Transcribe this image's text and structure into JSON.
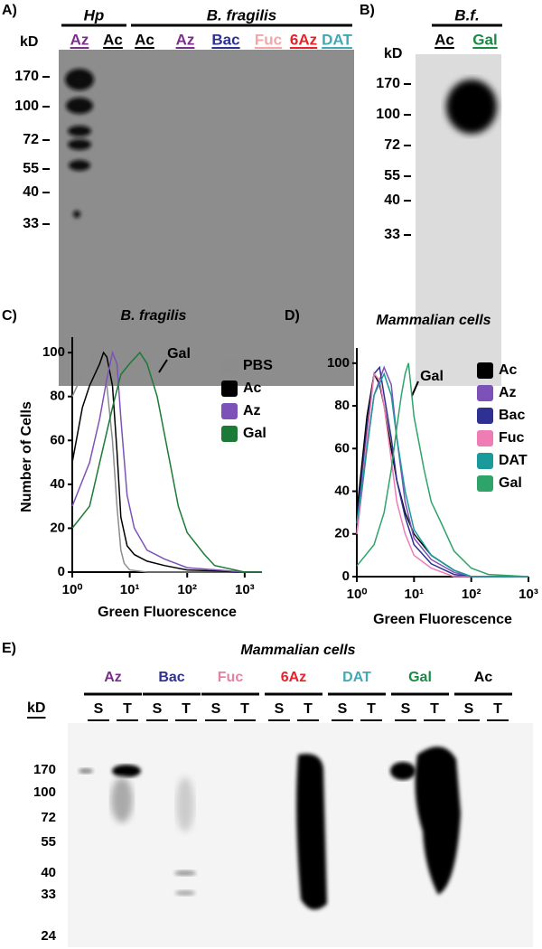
{
  "panels": {
    "a": {
      "label": "A)",
      "unit": "kD",
      "groups": [
        {
          "name": "Hp",
          "lanes": [
            {
              "name": "Az",
              "color": "#7b2d8e"
            },
            {
              "name": "Ac",
              "color": "#000000"
            }
          ]
        },
        {
          "name": "B. fragilis",
          "lanes": [
            {
              "name": "Ac",
              "color": "#000000"
            },
            {
              "name": "Az",
              "color": "#7b2d8e"
            },
            {
              "name": "Bac",
              "color": "#2e3192"
            },
            {
              "name": "Fuc",
              "color": "#f4a6a6"
            },
            {
              "name": "6Az",
              "color": "#e8212a"
            },
            {
              "name": "DAT",
              "color": "#3fa9b5"
            }
          ]
        }
      ],
      "markers": [
        170,
        100,
        72,
        55,
        40,
        33
      ]
    },
    "b": {
      "label": "B)",
      "unit": "kD",
      "groups": [
        {
          "name": "B.f.",
          "lanes": [
            {
              "name": "Ac",
              "color": "#000000"
            },
            {
              "name": "Gal",
              "color": "#1b8a45"
            }
          ]
        }
      ],
      "markers": [
        170,
        100,
        72,
        55,
        40,
        33
      ]
    },
    "e": {
      "label": "E)",
      "title": "Mammalian cells",
      "unit": "kD",
      "groups": [
        {
          "name": "Az",
          "color": "#7b2d8e",
          "lanes": [
            "S",
            "T"
          ]
        },
        {
          "name": "Bac",
          "color": "#2e3192",
          "lanes": [
            "S",
            "T"
          ]
        },
        {
          "name": "Fuc",
          "color": "#e87fa6",
          "lanes": [
            "S",
            "T"
          ]
        },
        {
          "name": "6Az",
          "color": "#e8212a",
          "lanes": [
            "S",
            "T"
          ]
        },
        {
          "name": "DAT",
          "color": "#3fa9b5",
          "lanes": [
            "S",
            "T"
          ]
        },
        {
          "name": "Gal",
          "color": "#1b8a45",
          "lanes": [
            "S",
            "T"
          ]
        },
        {
          "name": "Ac",
          "color": "#000000",
          "lanes": [
            "S",
            "T"
          ]
        }
      ],
      "markers": [
        170,
        100,
        72,
        55,
        40,
        33,
        24
      ]
    }
  },
  "chart_data": [
    {
      "type": "line",
      "label": "C)",
      "title": "B. fragilis",
      "xlabel": "Green Fluorescence",
      "ylabel": "Number of Cells",
      "log_x": true,
      "xlim": [
        1,
        2000
      ],
      "xticks": [
        {
          "value": 1,
          "label": "10⁰"
        },
        {
          "value": 10,
          "label": "10¹"
        },
        {
          "value": 100,
          "label": "10²"
        },
        {
          "value": 1000,
          "label": "10³"
        }
      ],
      "ylim": [
        0,
        105
      ],
      "yticks": [
        0,
        20,
        40,
        60,
        80,
        100
      ],
      "annotation": "Gal",
      "series": [
        {
          "name": "PBS",
          "color": "#8c8c8c",
          "x": [
            1,
            1.5,
            2,
            2.5,
            3,
            4,
            5,
            6,
            7,
            8,
            10,
            20,
            2000
          ],
          "values": [
            80,
            90,
            95,
            100,
            95,
            85,
            60,
            30,
            10,
            4,
            1,
            0,
            0
          ]
        },
        {
          "name": "Ac",
          "color": "#000000",
          "x": [
            1,
            1.5,
            2,
            3,
            3.5,
            4,
            5,
            6,
            7,
            9,
            12,
            20,
            40,
            100,
            1000,
            2000
          ],
          "values": [
            50,
            75,
            85,
            95,
            100,
            98,
            85,
            55,
            25,
            12,
            8,
            5,
            3,
            1,
            0,
            0
          ]
        },
        {
          "name": "Az",
          "color": "#7d52b8",
          "x": [
            1,
            2,
            3,
            4,
            5,
            6,
            7,
            9,
            12,
            20,
            40,
            100,
            1000,
            2000
          ],
          "values": [
            30,
            50,
            70,
            88,
            100,
            95,
            70,
            35,
            20,
            10,
            6,
            2,
            0,
            0
          ]
        },
        {
          "name": "Gal",
          "color": "#1b7a35",
          "x": [
            1,
            2,
            3,
            5,
            7,
            10,
            15,
            20,
            30,
            50,
            70,
            100,
            200,
            300,
            1000,
            2000
          ],
          "values": [
            20,
            30,
            50,
            75,
            90,
            95,
            100,
            95,
            80,
            50,
            30,
            18,
            8,
            3,
            0,
            0
          ]
        }
      ]
    },
    {
      "type": "line",
      "label": "D)",
      "title": "Mammalian cells",
      "xlabel": "Green Fluorescence",
      "log_x": true,
      "xlim": [
        1,
        1000
      ],
      "xticks": [
        {
          "value": 1,
          "label": "10⁰"
        },
        {
          "value": 10,
          "label": "10¹"
        },
        {
          "value": 100,
          "label": "10²"
        },
        {
          "value": 1000,
          "label": "10³"
        }
      ],
      "ylim": [
        0,
        105
      ],
      "yticks": [
        0,
        20,
        40,
        60,
        80,
        100
      ],
      "annotation": "Gal",
      "series": [
        {
          "name": "Ac",
          "color": "#000000",
          "x": [
            1,
            1.5,
            2,
            2.5,
            3,
            4,
            5,
            7,
            10,
            20,
            50,
            100,
            1000
          ],
          "values": [
            30,
            75,
            95,
            90,
            80,
            60,
            45,
            30,
            20,
            10,
            3,
            0,
            0
          ]
        },
        {
          "name": "Az",
          "color": "#7d52b8",
          "x": [
            1,
            1.5,
            2,
            3,
            4,
            5,
            7,
            10,
            20,
            50,
            100,
            1000
          ],
          "values": [
            20,
            60,
            85,
            98,
            90,
            65,
            35,
            18,
            8,
            2,
            0,
            0
          ]
        },
        {
          "name": "Bac",
          "color": "#2e3192",
          "x": [
            1,
            1.5,
            2,
            2.5,
            3,
            4,
            5,
            7,
            10,
            20,
            50,
            100,
            1000
          ],
          "values": [
            25,
            70,
            95,
            98,
            85,
            65,
            45,
            28,
            15,
            6,
            1,
            0,
            0
          ]
        },
        {
          "name": "Fuc",
          "color": "#f07cb5",
          "x": [
            1,
            1.5,
            2,
            2.5,
            3,
            4,
            5,
            7,
            10,
            20,
            50,
            1000
          ],
          "values": [
            20,
            65,
            95,
            92,
            80,
            55,
            35,
            20,
            10,
            4,
            0,
            0
          ]
        },
        {
          "name": "DAT",
          "color": "#1a9a9a",
          "x": [
            1,
            1.5,
            2,
            3,
            4,
            5,
            7,
            10,
            20,
            50,
            100,
            1000
          ],
          "values": [
            25,
            60,
            85,
            95,
            85,
            65,
            40,
            22,
            10,
            3,
            0,
            0
          ]
        },
        {
          "name": "Gal",
          "color": "#2ea36a",
          "x": [
            1,
            2,
            3,
            4,
            5,
            6,
            7,
            8,
            10,
            15,
            20,
            30,
            50,
            100,
            200,
            1000
          ],
          "values": [
            5,
            15,
            30,
            50,
            70,
            85,
            95,
            100,
            75,
            50,
            35,
            25,
            12,
            4,
            1,
            0
          ]
        }
      ]
    }
  ]
}
